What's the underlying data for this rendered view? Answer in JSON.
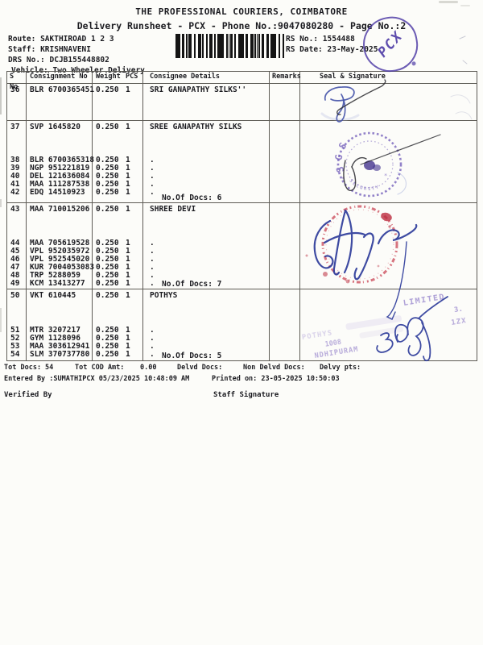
{
  "header": {
    "title": "THE PROFESSIONAL COURIERS, COIMBATORE",
    "subtitle": "Delivery Runsheet - PCX - Phone No.:9047080280 - Page No.:2"
  },
  "info": {
    "route_label": "Route:",
    "route": "SAKTHIROAD 1 2 3",
    "staff_label": "Staff:",
    "staff": "KRISHNAVENI",
    "drs_label": "DRS No.:",
    "drs": "DCJB155448802",
    "vehicle_label": "Vehicle:",
    "vehicle": "Two Wheeler Delivery",
    "rs_no_label": "RS No.:",
    "rs_no": "1554488",
    "rs_date_label": "RS Date:",
    "rs_date": "23-May-2025"
  },
  "table": {
    "headers": [
      "S No",
      "Consignment No",
      "Weight",
      "PCS",
      "Consignee Details",
      "Remarks",
      "Seal & Signature"
    ],
    "groups": [
      {
        "main": {
          "sno": "36",
          "cn": "BLR 6700365451",
          "weight": "0.250",
          "pcs": "1",
          "consignee": "SRI GANAPATHY SILKS''"
        },
        "subs": [],
        "docs": ""
      },
      {
        "main": {
          "sno": "37",
          "cn": "SVP 1645820",
          "weight": "0.250",
          "pcs": "1",
          "consignee": "SREE GANAPATHY SILKS"
        },
        "subs": [
          {
            "sno": "38",
            "cn": "BLR 6700365318",
            "weight": "0.250",
            "pcs": "1",
            "consignee": "."
          },
          {
            "sno": "39",
            "cn": "NGP 951221819",
            "weight": "0.250",
            "pcs": "1",
            "consignee": "."
          },
          {
            "sno": "40",
            "cn": "DEL 121636084",
            "weight": "0.250",
            "pcs": "1",
            "consignee": "."
          },
          {
            "sno": "41",
            "cn": "MAA 111287538",
            "weight": "0.250",
            "pcs": "1",
            "consignee": "."
          },
          {
            "sno": "42",
            "cn": "EDQ 14510923",
            "weight": "0.250",
            "pcs": "1",
            "consignee": "."
          }
        ],
        "docs": "No.Of Docs: 6"
      },
      {
        "main": {
          "sno": "43",
          "cn": "MAA 710015206",
          "weight": "0.250",
          "pcs": "1",
          "consignee": "SHREE DEVI"
        },
        "subs": [
          {
            "sno": "44",
            "cn": "MAA 705619528",
            "weight": "0.250",
            "pcs": "1",
            "consignee": "."
          },
          {
            "sno": "45",
            "cn": "VPL 952035972",
            "weight": "0.250",
            "pcs": "1",
            "consignee": "."
          },
          {
            "sno": "46",
            "cn": "VPL 952545020",
            "weight": "0.250",
            "pcs": "1",
            "consignee": "."
          },
          {
            "sno": "47",
            "cn": "KUR 7004053083",
            "weight": "0.250",
            "pcs": "1",
            "consignee": "."
          },
          {
            "sno": "48",
            "cn": "TRP 5288059",
            "weight": "0.250",
            "pcs": "1",
            "consignee": "."
          },
          {
            "sno": "49",
            "cn": "KCM 13413277",
            "weight": "0.250",
            "pcs": "1",
            "consignee": "."
          }
        ],
        "docs": "No.Of Docs: 7"
      },
      {
        "main": {
          "sno": "50",
          "cn": "VKT 610445",
          "weight": "0.250",
          "pcs": "1",
          "consignee": "POTHYS"
        },
        "subs": [
          {
            "sno": "51",
            "cn": "MTR 3207217",
            "weight": "0.250",
            "pcs": "1",
            "consignee": "."
          },
          {
            "sno": "52",
            "cn": "GYM 1128096",
            "weight": "0.250",
            "pcs": "1",
            "consignee": "."
          },
          {
            "sno": "53",
            "cn": "MAA 303612941",
            "weight": "0.250",
            "pcs": "1",
            "consignee": "."
          },
          {
            "sno": "54",
            "cn": "SLM 370737780",
            "weight": "0.250",
            "pcs": "1",
            "consignee": "."
          }
        ],
        "docs": "No.Of Docs: 5"
      }
    ]
  },
  "footer": {
    "tot_docs_label": "Tot Docs:",
    "tot_docs": "54",
    "tot_cod_label": "Tot COD Amt:",
    "tot_cod": "0.00",
    "delvd_label": "Delvd Docs:",
    "non_delvd_label": "Non Delvd Docs:",
    "delvy_pts_label": "Delvy pts:",
    "entered_by": "Entered By :SUMATHIPCX 05/23/2025 10:48:09 AM",
    "printed_on": "Printed on: 23-05-2025 10:50:03",
    "verified_by": "Verified By",
    "staff_signature": "Staff Signature"
  },
  "stamps": {
    "pcx_text": "PCX",
    "sgs_arc_top": "SGS",
    "sgs_arc_bottom": "SECURITY",
    "pothys_fragments": {
      "f1": "POTHYS",
      "f2": "LIMITED",
      "f3": "1008",
      "f4": "NDHIPURAM",
      "f5": "3.",
      "f6": "1ZX"
    },
    "ink_colors": {
      "purple": "#6a53b6",
      "red": "#c73b4c",
      "blue": "#3a48a4",
      "black": "#2b2b30"
    }
  }
}
